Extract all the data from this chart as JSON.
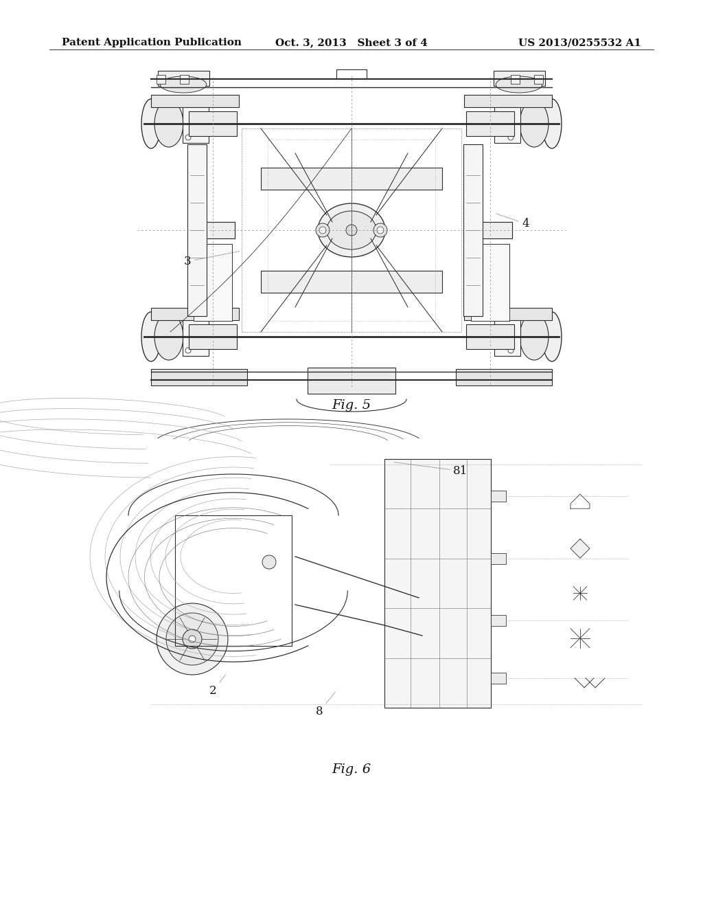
{
  "background_color": "#ffffff",
  "header_left": "Patent Application Publication",
  "header_center": "Oct. 3, 2013   Sheet 3 of 4",
  "header_right": "US 2013/0255532 A1",
  "header_fontsize": 11,
  "header_fontweight": "bold",
  "fig5_label": "Fig. 5",
  "fig6_label": "Fig. 6",
  "label_fontsize": 14,
  "ref_fontsize": 12,
  "line_color": "#333333",
  "text_color": "#111111"
}
